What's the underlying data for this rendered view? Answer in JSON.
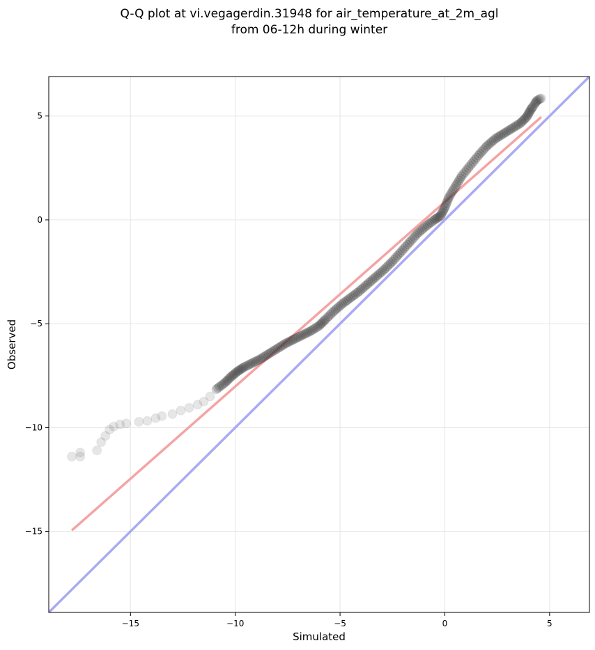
{
  "chart_data": {
    "type": "scatter",
    "title_line1": "Q-Q plot at vi.vegagerdin.31948 for air_temperature_at_2m_agl",
    "title_line2": "from 06-12h during winter",
    "xlabel": "Simulated",
    "ylabel": "Observed",
    "xlim": [
      -18.9,
      6.9
    ],
    "ylim": [
      -18.9,
      6.9
    ],
    "xticks": [
      -15,
      -10,
      -5,
      0,
      5
    ],
    "yticks": [
      -15,
      -10,
      -5,
      0,
      5
    ],
    "xtick_labels": [
      "−15",
      "−10",
      "−5",
      "0",
      "5"
    ],
    "ytick_labels": [
      "−15",
      "−10",
      "−5",
      "0",
      "5"
    ],
    "grid": true,
    "colors": {
      "points": "#333333",
      "fit_line": "#f4a4a4",
      "identity_line": "#aaaaf4",
      "grid": "#e6e6e6"
    },
    "quantiles": [
      [
        -17.8,
        -11.4
      ],
      [
        -17.4,
        -11.4
      ],
      [
        -17.4,
        -11.2
      ],
      [
        -16.6,
        -11.1
      ],
      [
        -16.4,
        -10.7
      ],
      [
        -16.2,
        -10.4
      ],
      [
        -16.0,
        -10.1
      ],
      [
        -15.8,
        -9.95
      ],
      [
        -15.5,
        -9.85
      ],
      [
        -15.2,
        -9.8
      ],
      [
        -14.6,
        -9.72
      ],
      [
        -14.2,
        -9.68
      ],
      [
        -13.8,
        -9.55
      ],
      [
        -13.5,
        -9.45
      ],
      [
        -13.0,
        -9.35
      ],
      [
        -12.6,
        -9.18
      ],
      [
        -12.2,
        -9.05
      ],
      [
        -11.8,
        -8.9
      ],
      [
        -11.5,
        -8.75
      ],
      [
        -11.2,
        -8.5
      ],
      [
        -10.9,
        -8.15
      ],
      [
        -10.5,
        -7.85
      ],
      [
        -10.2,
        -7.55
      ],
      [
        -9.9,
        -7.3
      ],
      [
        -9.6,
        -7.1
      ],
      [
        -9.2,
        -6.9
      ],
      [
        -8.8,
        -6.7
      ],
      [
        -8.4,
        -6.45
      ],
      [
        -8.0,
        -6.2
      ],
      [
        -7.6,
        -5.95
      ],
      [
        -7.2,
        -5.75
      ],
      [
        -6.8,
        -5.55
      ],
      [
        -6.4,
        -5.35
      ],
      [
        -6.0,
        -5.1
      ],
      [
        -5.7,
        -4.8
      ],
      [
        -5.3,
        -4.4
      ],
      [
        -4.9,
        -4.05
      ],
      [
        -4.5,
        -3.75
      ],
      [
        -4.1,
        -3.45
      ],
      [
        -3.7,
        -3.1
      ],
      [
        -3.3,
        -2.75
      ],
      [
        -2.9,
        -2.4
      ],
      [
        -2.5,
        -2.0
      ],
      [
        -2.1,
        -1.55
      ],
      [
        -1.7,
        -1.1
      ],
      [
        -1.3,
        -0.65
      ],
      [
        -0.9,
        -0.3
      ],
      [
        -0.5,
        0.0
      ],
      [
        -0.2,
        0.2
      ],
      [
        0.0,
        0.6
      ],
      [
        0.2,
        1.1
      ],
      [
        0.5,
        1.6
      ],
      [
        0.8,
        2.1
      ],
      [
        1.2,
        2.6
      ],
      [
        1.6,
        3.1
      ],
      [
        2.0,
        3.55
      ],
      [
        2.4,
        3.9
      ],
      [
        2.8,
        4.15
      ],
      [
        3.2,
        4.4
      ],
      [
        3.6,
        4.65
      ],
      [
        3.9,
        4.95
      ],
      [
        4.1,
        5.3
      ],
      [
        4.3,
        5.6
      ],
      [
        4.4,
        5.75
      ],
      [
        4.6,
        5.85
      ]
    ],
    "fit_line": [
      [
        -17.8,
        -14.95
      ],
      [
        4.6,
        4.95
      ]
    ],
    "identity_line": [
      [
        -18.9,
        -18.9
      ],
      [
        6.9,
        6.9
      ]
    ]
  }
}
